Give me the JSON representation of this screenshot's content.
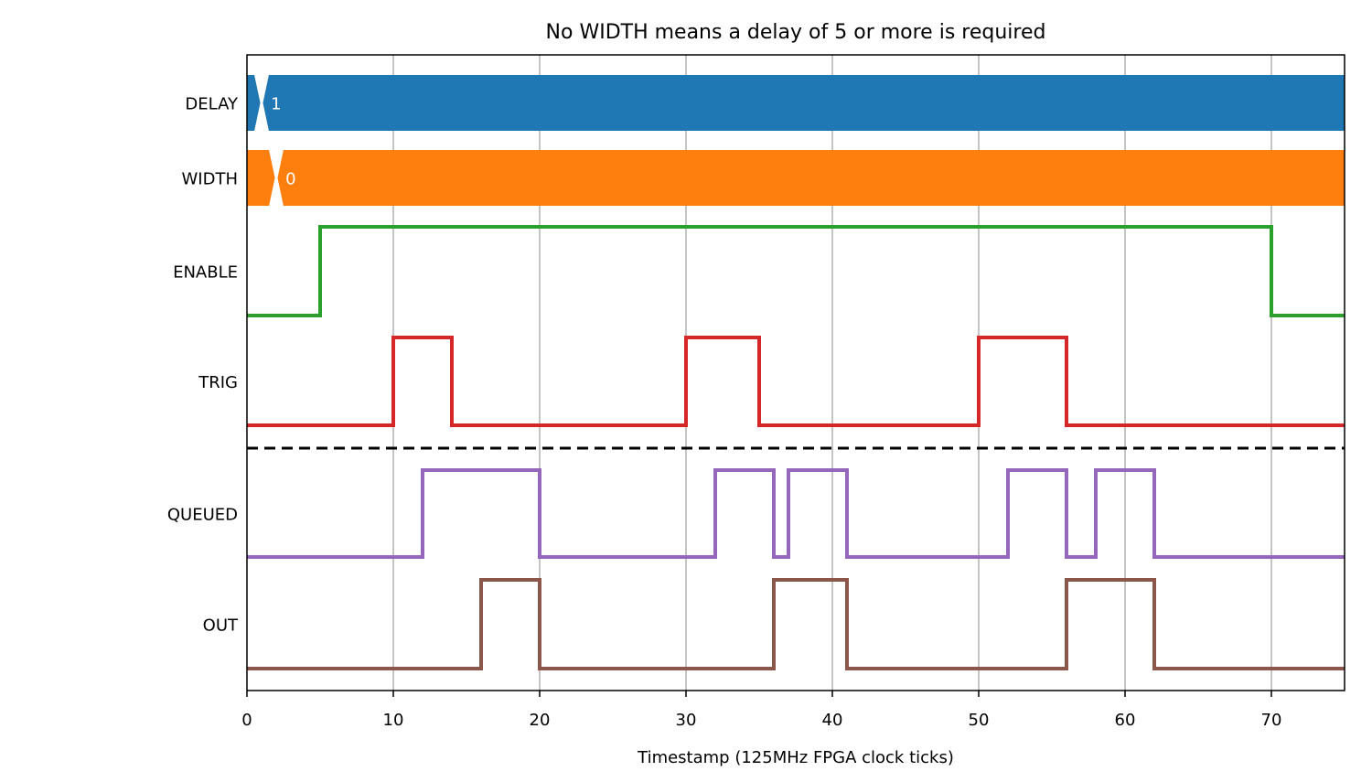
{
  "chart_data": {
    "type": "line",
    "title": "No WIDTH means a delay of 5 or more is required",
    "xlabel": "Timestamp (125MHz FPGA clock ticks)",
    "ylabel": "",
    "xlim": [
      0,
      75
    ],
    "xticks": [
      0,
      10,
      20,
      30,
      40,
      50,
      60,
      70
    ],
    "grid": "vertical",
    "buses": [
      {
        "name": "DELAY",
        "color": "#1f77b4",
        "segments": [
          {
            "start": 1,
            "end": 75,
            "value": "1"
          }
        ]
      },
      {
        "name": "WIDTH",
        "color": "#ff7f0e",
        "segments": [
          {
            "start": 2,
            "end": 75,
            "value": "0"
          }
        ]
      }
    ],
    "signals": [
      {
        "name": "ENABLE",
        "color": "#2ca02c",
        "group": "inputs",
        "transitions": [
          [
            0,
            0
          ],
          [
            5,
            1
          ],
          [
            70,
            0
          ]
        ]
      },
      {
        "name": "TRIG",
        "color": "#d62728",
        "group": "inputs",
        "transitions": [
          [
            0,
            0
          ],
          [
            10,
            1
          ],
          [
            14,
            0
          ],
          [
            30,
            1
          ],
          [
            35,
            0
          ],
          [
            50,
            1
          ],
          [
            56,
            0
          ]
        ]
      },
      {
        "name": "QUEUED",
        "color": "#9467bd",
        "group": "outputs",
        "transitions": [
          [
            0,
            0
          ],
          [
            12,
            1
          ],
          [
            20,
            0
          ],
          [
            32,
            1
          ],
          [
            36,
            0
          ],
          [
            37,
            1
          ],
          [
            41,
            0
          ],
          [
            52,
            1
          ],
          [
            56,
            0
          ],
          [
            58,
            1
          ],
          [
            62,
            0
          ]
        ]
      },
      {
        "name": "OUT",
        "color": "#8c564b",
        "group": "outputs",
        "transitions": [
          [
            0,
            0
          ],
          [
            16,
            1
          ],
          [
            20,
            0
          ],
          [
            36,
            1
          ],
          [
            41,
            0
          ],
          [
            56,
            1
          ],
          [
            62,
            0
          ]
        ]
      }
    ],
    "separator": "dashed line between inputs and outputs"
  }
}
